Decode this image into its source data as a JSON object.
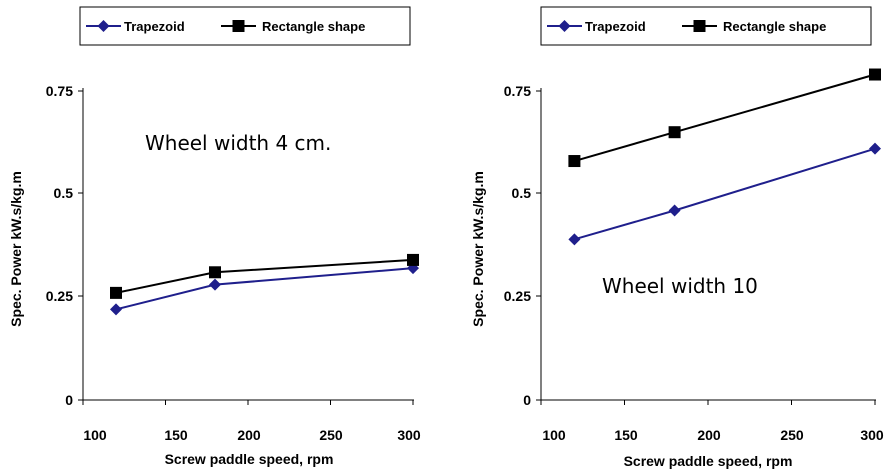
{
  "chart_data": [
    {
      "type": "line",
      "categories": [
        "100",
        "150",
        "200",
        "250",
        "300"
      ],
      "x": [
        "120",
        "180",
        "300"
      ],
      "series": [
        {
          "name": "Trapezoid",
          "values": [
            0.22,
            0.28,
            0.32
          ],
          "color": "#1f1f8c",
          "marker": "diamond"
        },
        {
          "name": "Rectangle shape",
          "values": [
            0.26,
            0.31,
            0.34
          ],
          "color": "#000000",
          "marker": "square"
        }
      ],
      "xlabel": "Screw paddle speed, rpm",
      "ylabel": "Spec. Power kW.s/kg.m",
      "yticks": [
        "0",
        "0.25",
        "0.5",
        "0.75"
      ],
      "ylim": [
        0,
        0.75
      ],
      "annotation": "Wheel width 4 cm.",
      "legend": "top",
      "grid": false
    },
    {
      "type": "line",
      "categories": [
        "100",
        "150",
        "200",
        "250",
        "300"
      ],
      "x": [
        "120",
        "180",
        "300"
      ],
      "series": [
        {
          "name": "Trapezoid",
          "values": [
            0.39,
            0.46,
            0.61
          ],
          "color": "#1f1f8c",
          "marker": "diamond"
        },
        {
          "name": "Rectangle shape",
          "values": [
            0.58,
            0.65,
            0.79
          ],
          "color": "#000000",
          "marker": "square"
        }
      ],
      "xlabel": "Screw paddle speed, rpm",
      "ylabel": "Spec. Power kW.s/kg.m",
      "yticks": [
        "0",
        "0.25",
        "0.5",
        "0.75"
      ],
      "ylim": [
        0,
        0.75
      ],
      "annotation": "Wheel width 10",
      "legend": "top",
      "grid": false
    }
  ]
}
